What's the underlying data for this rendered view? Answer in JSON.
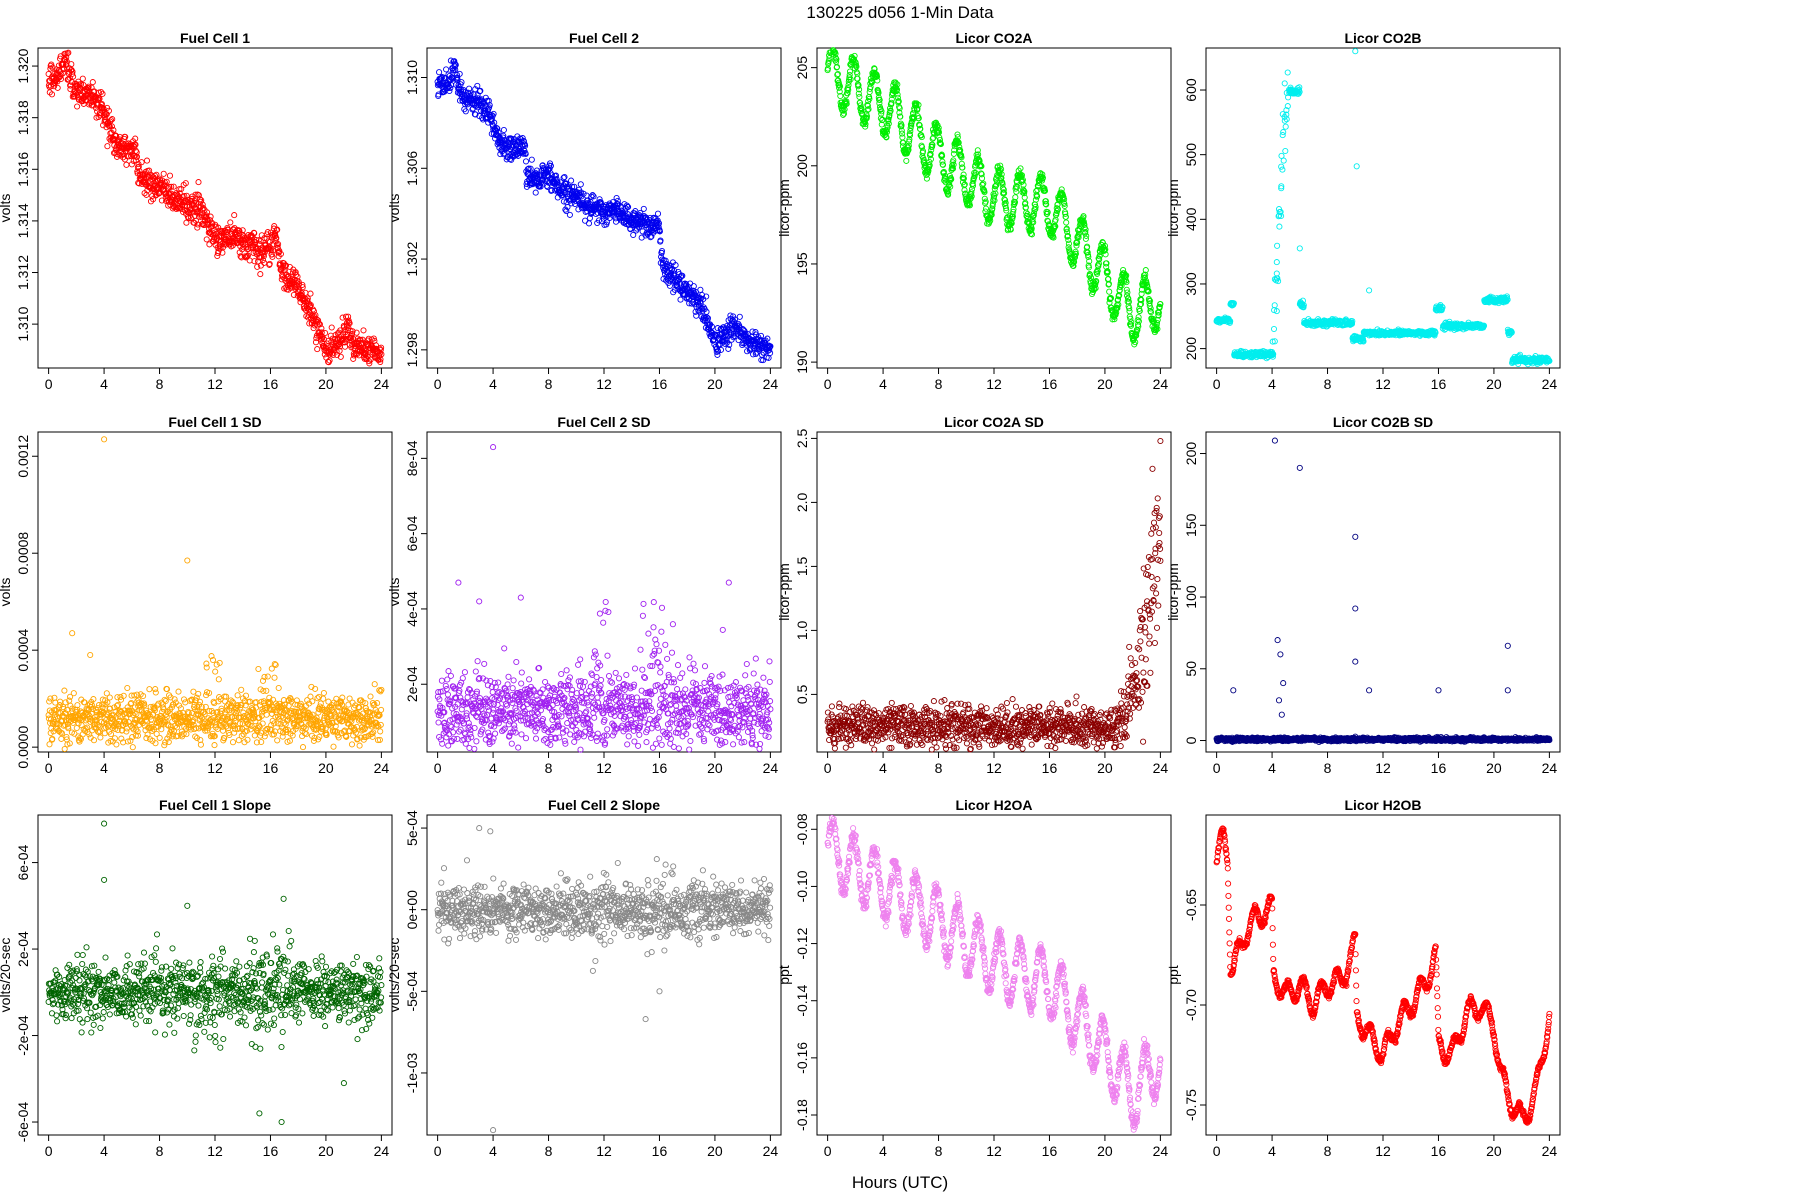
{
  "main_title": "130225   d056   1-Min Data",
  "x_axis_label": "Hours (UTC)",
  "x_ticks": [
    "0",
    "4",
    "8",
    "12",
    "16",
    "20",
    "24"
  ],
  "chart_data": [
    {
      "type": "scatter",
      "title": "Fuel Cell 1",
      "ylabel": "volts",
      "color": "#ff0000",
      "xlim": [
        0,
        24
      ],
      "ylim": [
        1.3083,
        1.3207
      ],
      "yticks": [
        1.31,
        1.312,
        1.314,
        1.316,
        1.318,
        1.32
      ],
      "ytick_labels": [
        "1.310",
        "1.312",
        "1.314",
        "1.316",
        "1.318",
        "1.320"
      ],
      "trend_x": [
        0,
        0.5,
        1,
        1.2,
        1.5,
        2,
        3,
        3.8,
        4.5,
        5,
        5.5,
        6.3,
        6.4,
        7,
        8,
        9,
        10,
        11,
        12,
        13,
        14,
        15,
        16,
        16.3,
        17,
        18,
        19,
        19.7,
        20,
        21,
        21.5,
        22,
        23,
        24
      ],
      "trend_y": [
        1.3196,
        1.3194,
        1.3199,
        1.3205,
        1.3195,
        1.319,
        1.3189,
        1.3185,
        1.3175,
        1.3168,
        1.3169,
        1.3168,
        1.316,
        1.3155,
        1.3154,
        1.3148,
        1.3146,
        1.3144,
        1.3133,
        1.3134,
        1.3132,
        1.3129,
        1.3128,
        1.3135,
        1.3118,
        1.3115,
        1.3102,
        1.3095,
        1.3088,
        1.3093,
        1.31,
        1.3092,
        1.309,
        1.3088
      ],
      "noise": 0.00028
    },
    {
      "type": "scatter",
      "title": "Fuel Cell 2",
      "ylabel": "volts",
      "color": "#0000ee",
      "xlim": [
        0,
        24
      ],
      "ylim": [
        1.2972,
        1.3113
      ],
      "yticks": [
        1.298,
        1.302,
        1.306,
        1.31
      ],
      "ytick_labels": [
        "1.298",
        "1.302",
        "1.306",
        "1.310"
      ],
      "trend_x": [
        0,
        0.5,
        1,
        1.2,
        1.5,
        2,
        3,
        3.8,
        4.5,
        5,
        5.5,
        6.3,
        6.4,
        7,
        8,
        9,
        10,
        11,
        12,
        13,
        14,
        15,
        16,
        16.3,
        17,
        18,
        19,
        19.7,
        20,
        21,
        21.5,
        22,
        23,
        24
      ],
      "trend_y": [
        1.3098,
        1.3095,
        1.31,
        1.3107,
        1.3095,
        1.309,
        1.3089,
        1.3082,
        1.3072,
        1.3068,
        1.3069,
        1.307,
        1.3058,
        1.3055,
        1.3057,
        1.305,
        1.3048,
        1.3043,
        1.304,
        1.3042,
        1.3037,
        1.3036,
        1.3033,
        1.3015,
        1.3012,
        1.3006,
        1.3,
        1.2988,
        1.2983,
        1.2987,
        1.2992,
        1.2985,
        1.2982,
        1.298
      ],
      "noise": 0.00028
    },
    {
      "type": "scatter",
      "title": "Licor CO2A",
      "ylabel": "licor-ppm",
      "color": "#00ee00",
      "xlim": [
        0,
        24
      ],
      "ylim": [
        189.7,
        206.0
      ],
      "yticks": [
        190,
        195,
        200,
        205
      ],
      "ytick_labels": [
        "190",
        "195",
        "200",
        "205"
      ],
      "trend_x": [
        0,
        4,
        8,
        12,
        16,
        20,
        22,
        24
      ],
      "trend_y": [
        204.8,
        203.1,
        200.6,
        198.4,
        198.0,
        194.3,
        192.5,
        193.2
      ],
      "osc_amp": 1.4,
      "osc_period": 1.5
    },
    {
      "type": "scatter",
      "title": "Licor CO2B",
      "ylabel": "licor-ppm",
      "color": "#00eeee",
      "xlim": [
        0,
        24
      ],
      "ylim": [
        170,
        665
      ],
      "yticks": [
        200,
        300,
        400,
        500,
        600
      ],
      "ytick_labels": [
        "200",
        "300",
        "400",
        "500",
        "600"
      ],
      "segments": [
        {
          "x0": 0.0,
          "x1": 1.0,
          "y": 244
        },
        {
          "x0": 1.0,
          "x1": 1.25,
          "y": 268
        },
        {
          "x0": 1.25,
          "x1": 4.1,
          "y": 191
        },
        {
          "x0": 5.2,
          "x1": 6.0,
          "y": 598
        },
        {
          "x0": 6.0,
          "x1": 6.3,
          "y": 268
        },
        {
          "x0": 6.3,
          "x1": 9.8,
          "y": 240
        },
        {
          "x0": 9.8,
          "x1": 10.6,
          "y": 215
        },
        {
          "x0": 10.6,
          "x1": 15.8,
          "y": 224
        },
        {
          "x0": 15.8,
          "x1": 16.3,
          "y": 262
        },
        {
          "x0": 16.3,
          "x1": 19.3,
          "y": 235
        },
        {
          "x0": 19.3,
          "x1": 21.0,
          "y": 275
        },
        {
          "x0": 21.0,
          "x1": 21.3,
          "y": 225
        },
        {
          "x0": 21.3,
          "x1": 24.0,
          "y": 182
        }
      ],
      "spike_x": [
        4.1,
        4.2,
        4.3,
        4.4,
        4.5,
        4.6,
        4.7,
        4.8,
        4.9,
        5.0,
        5.1
      ],
      "spike_y": [
        200,
        250,
        310,
        350,
        390,
        430,
        470,
        500,
        540,
        570,
        600
      ],
      "outlier_x": [
        10.0,
        10.1,
        6.0,
        11.0
      ],
      "outlier_y": [
        660,
        482,
        355,
        290
      ]
    },
    {
      "type": "scatter",
      "title": "Fuel Cell 1 SD",
      "ylabel": "volts",
      "color": "#ffa500",
      "xlim": [
        0,
        24
      ],
      "ylim": [
        -2e-05,
        0.0013
      ],
      "yticks": [
        0.0,
        0.0004,
        0.0008,
        0.0012
      ],
      "ytick_labels": [
        "0.0000",
        "0.0004",
        "0.0008",
        "0.0012"
      ],
      "base": 0.00012,
      "spread": 5e-05,
      "burst_ranges": [
        [
          11,
          12.5
        ],
        [
          15,
          16.5
        ]
      ],
      "burst_amp": 0.00015,
      "outlier_x": [
        4.0,
        10.0,
        1.7,
        3.0
      ],
      "outlier_y": [
        0.00127,
        0.00077,
        0.00047,
        0.00038
      ]
    },
    {
      "type": "scatter",
      "title": "Fuel Cell 2 SD",
      "ylabel": "volts",
      "color": "#a020f0",
      "xlim": [
        0,
        24
      ],
      "ylim": [
        2e-05,
        0.00087
      ],
      "yticks": [
        0.0002,
        0.0004,
        0.0006,
        0.0008
      ],
      "ytick_labels": [
        "2e-04",
        "4e-04",
        "6e-04",
        "8e-04"
      ],
      "base": 0.00013,
      "spread": 5e-05,
      "burst_ranges": [
        [
          11,
          12.5
        ],
        [
          14.5,
          17
        ]
      ],
      "burst_amp": 0.00014,
      "outlier_x": [
        4.0,
        1.5,
        6.0,
        3.0,
        21.0
      ],
      "outlier_y": [
        0.00083,
        0.00047,
        0.00043,
        0.00042,
        0.00047
      ]
    },
    {
      "type": "scatter",
      "title": "Licor CO2A SD",
      "ylabel": "licor-ppm",
      "color": "#8b0000",
      "xlim": [
        0,
        24
      ],
      "ylim": [
        0.05,
        2.55
      ],
      "yticks": [
        0.5,
        1.0,
        1.5,
        2.0,
        2.5
      ],
      "ytick_labels": [
        "0.5",
        "1.0",
        "1.5",
        "2.0",
        "2.5"
      ],
      "base": 0.25,
      "spread": 0.08,
      "ramp_start": 20.5,
      "ramp_end": 24.0,
      "ramp_top": 1.7,
      "outlier_x": [
        24.0
      ],
      "outlier_y": [
        2.48
      ]
    },
    {
      "type": "scatter",
      "title": "Licor CO2B SD",
      "ylabel": "licor-ppm",
      "color": "#000080",
      "xlim": [
        0,
        24
      ],
      "ylim": [
        -8,
        215
      ],
      "yticks": [
        0,
        50,
        100,
        150,
        200
      ],
      "ytick_labels": [
        "0",
        "50",
        "100",
        "150",
        "200"
      ],
      "base": 0.8,
      "spread": 0.6,
      "outlier_x": [
        4.2,
        6.0,
        10.0,
        10.0,
        10.0,
        4.4,
        4.6,
        4.8,
        4.5,
        4.7,
        21.0,
        21.0,
        11.0,
        16.0,
        1.2
      ],
      "outlier_y": [
        209,
        190,
        142,
        92,
        55,
        70,
        60,
        40,
        28,
        18,
        66,
        35,
        35,
        35,
        35
      ]
    },
    {
      "type": "scatter",
      "title": "Fuel Cell 1 Slope",
      "ylabel": "volts/20-sec",
      "color": "#006400",
      "xlim": [
        0,
        24
      ],
      "ylim": [
        -0.00066,
        0.00082
      ],
      "yticks": [
        -0.0006,
        -0.0002,
        0.0002,
        0.0006
      ],
      "ytick_labels": [
        "-6e-04",
        "-2e-04",
        "2e-04",
        "6e-04"
      ],
      "base": 0.0,
      "spread": 7e-05,
      "burst_ranges": [
        [
          10,
          13
        ],
        [
          14.5,
          17.5
        ]
      ],
      "burst_amp": 0.00022,
      "outlier_x": [
        4.0,
        4.0,
        15.2,
        16.8,
        10.0,
        21.3
      ],
      "outlier_y": [
        0.00078,
        0.00052,
        -0.00056,
        -0.0006,
        0.0004,
        -0.00042
      ]
    },
    {
      "type": "scatter",
      "title": "Fuel Cell 2 Slope",
      "ylabel": "volts/20-sec",
      "color": "#888888",
      "xlim": [
        0,
        24
      ],
      "ylim": [
        -0.00138,
        0.00058
      ],
      "yticks": [
        -0.001,
        -0.0005,
        0.0,
        0.0005
      ],
      "ytick_labels": [
        "-1e-03",
        "-5e-04",
        "0e+00",
        "5e-04"
      ],
      "base": 0.0,
      "spread": 8e-05,
      "burst_ranges": [
        [
          11,
          13
        ],
        [
          15,
          17
        ]
      ],
      "burst_amp": 0.0002,
      "outlier_x": [
        4.0,
        3.0,
        15.0,
        16.0,
        3.8
      ],
      "outlier_y": [
        -0.00135,
        0.0005,
        -0.00067,
        -0.0005,
        0.00048
      ]
    },
    {
      "type": "scatter",
      "title": "Licor H2OA",
      "ylabel": "ppt",
      "color": "#ee82ee",
      "xlim": [
        0,
        24
      ],
      "ylim": [
        -0.187,
        -0.075
      ],
      "yticks": [
        -0.18,
        -0.16,
        -0.14,
        -0.12,
        -0.1,
        -0.08
      ],
      "ytick_labels": [
        "-0.18",
        "-0.16",
        "-0.14",
        "-0.12",
        "-0.10",
        "-0.08"
      ],
      "trend_x": [
        0,
        4,
        8,
        12,
        16,
        20,
        22,
        24
      ],
      "trend_y": [
        -0.087,
        -0.1,
        -0.112,
        -0.127,
        -0.134,
        -0.158,
        -0.173,
        -0.16
      ],
      "osc_amp": 0.011,
      "osc_period": 1.5
    },
    {
      "type": "scatter",
      "title": "Licor H2OB",
      "ylabel": "ppt",
      "color": "#ff0000",
      "xlim": [
        0,
        24
      ],
      "ylim": [
        -0.765,
        -0.605
      ],
      "yticks": [
        -0.75,
        -0.7,
        -0.65
      ],
      "ytick_labels": [
        "-0.75",
        "-0.70",
        "-0.65"
      ],
      "trend_x": [
        0,
        0.5,
        0.8,
        1.0,
        1.2,
        2,
        3,
        4,
        4.1,
        5,
        6,
        7,
        8,
        9,
        10,
        10.1,
        11,
        12,
        13,
        14,
        15,
        15.8,
        16.0,
        17,
        18,
        19,
        20,
        20.5,
        21,
        22,
        23,
        24
      ],
      "trend_y": [
        -0.63,
        -0.615,
        -0.625,
        -0.68,
        -0.682,
        -0.665,
        -0.655,
        -0.652,
        -0.685,
        -0.695,
        -0.69,
        -0.7,
        -0.69,
        -0.688,
        -0.67,
        -0.705,
        -0.715,
        -0.725,
        -0.71,
        -0.7,
        -0.69,
        -0.675,
        -0.72,
        -0.725,
        -0.705,
        -0.7,
        -0.71,
        -0.735,
        -0.745,
        -0.758,
        -0.745,
        -0.705
      ],
      "osc_amp": 0.006,
      "osc_period": 1.2
    }
  ]
}
